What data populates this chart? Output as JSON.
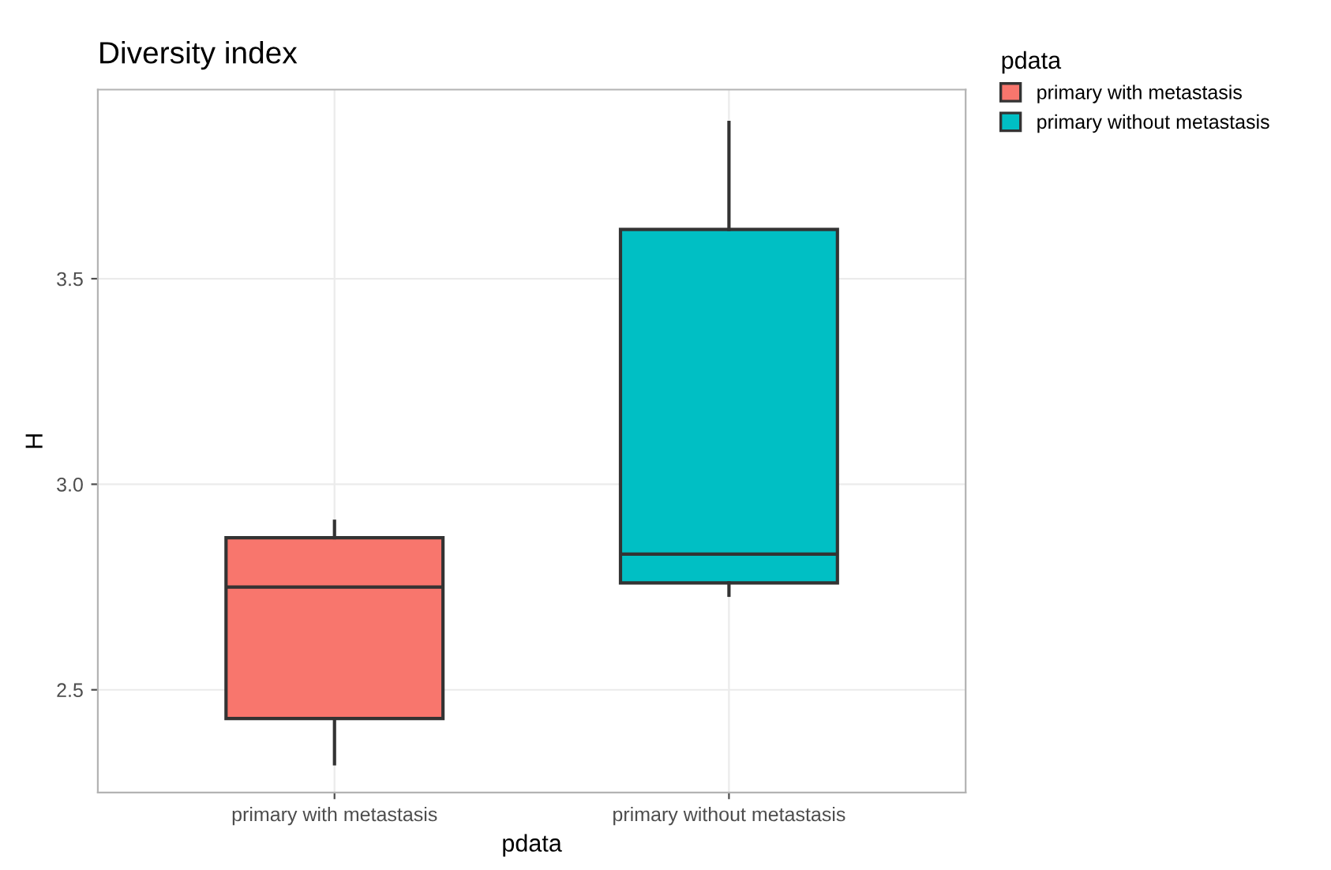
{
  "chart_data": {
    "type": "box",
    "title": "Diversity index",
    "xlabel": "pdata",
    "ylabel": "H",
    "legend_title": "pdata",
    "categories": [
      "primary with metastasis",
      "primary without metastasis"
    ],
    "series": [
      {
        "name": "primary with metastasis",
        "color": "#f8766d",
        "boxes": [
          {
            "low": 2.32,
            "q1": 2.43,
            "median": 2.75,
            "q3": 2.87,
            "high": 2.91
          },
          null
        ]
      },
      {
        "name": "primary without metastasis",
        "color": "#00bfc4",
        "boxes": [
          null,
          {
            "low": 2.73,
            "q1": 2.76,
            "median": 2.83,
            "q3": 3.62,
            "high": 3.88
          }
        ]
      }
    ],
    "ylim": [
      2.25,
      3.96
    ],
    "yticks": [
      2.5,
      {
        "value": 3,
        "label": "3.0"
      },
      3.5
    ],
    "grid": true,
    "legend": "right"
  }
}
